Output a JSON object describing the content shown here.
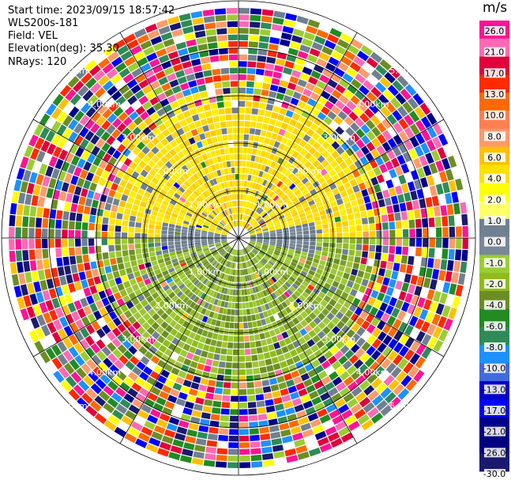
{
  "header": {
    "start_time": "Start time: 2023/09/15 18:57:42",
    "instrument": "WLS200s-181",
    "field": "Field: VEL",
    "elevation": "Elevation(deg): 35.30",
    "nrays": "NRays: 120"
  },
  "chart_data": {
    "type": "heatmap",
    "projection": "polar PPI",
    "field": "VEL",
    "unit": "m/s",
    "rays": 120,
    "max_range_km": 5.0,
    "range_rings_km": [
      1.0,
      2.0,
      3.0,
      4.0,
      5.0
    ],
    "range_labels": [
      "1.00km",
      "2.00km",
      "3.00km",
      "4.00km",
      "5.00km"
    ],
    "spoke_azimuths_deg": [
      0,
      30,
      60,
      90,
      120,
      150,
      180,
      210,
      240,
      270,
      300,
      330
    ],
    "colorbar": {
      "ticks": [
        "26.0",
        "21.0",
        "17.0",
        "13.0",
        "10.0",
        "8.0",
        "6.0",
        "4.0",
        "2.0",
        "1.0",
        "0.0",
        "-1.0",
        "-2.0",
        "-4.0",
        "-6.0",
        "-8.0",
        "-10.0",
        "-13.0",
        "-17.0",
        "-21.0",
        "-26.0",
        "-30.0"
      ],
      "colors": [
        "#ff1493",
        "#ff69b4",
        "#e0003c",
        "#ff2a00",
        "#ff6a00",
        "#ff7f50",
        "#ff9a6a",
        "#ffc000",
        "#ffe000",
        "#ffff00",
        "#ffff66",
        "#708090",
        "#778899",
        "#9acd32",
        "#8fbc1a",
        "#6b8e23",
        "#228b22",
        "#2e8b57",
        "#1e90ff",
        "#4169e1",
        "#0000cd",
        "#0000ff",
        "#00008b",
        "#000080",
        "#191970"
      ]
    },
    "pattern": {
      "north_half": "positive velocities (+1 to +4 m/s, yellow)",
      "south_half": "negative velocities (-1 to -4 m/s, olive green)",
      "near_east_west": "near zero (grey)",
      "outer_ranges": "noise (random colors)"
    }
  }
}
